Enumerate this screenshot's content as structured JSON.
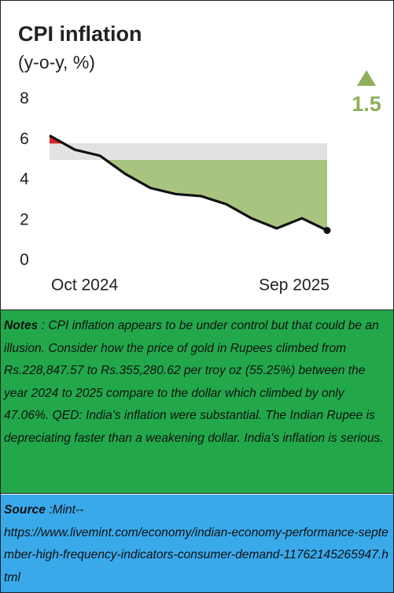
{
  "chart_data": {
    "type": "line",
    "title": "CPI inflation",
    "subtitle": "(y-o-y, %)",
    "categories": [
      "Oct 2024",
      null,
      null,
      null,
      null,
      null,
      null,
      null,
      null,
      null,
      null,
      "Sep 2025"
    ],
    "series": [
      {
        "color": "#111111",
        "values": [
          6.2,
          5.5,
          5.2,
          4.3,
          3.6,
          3.3,
          3.2,
          2.8,
          2.1,
          1.6,
          2.1,
          1.5
        ]
      }
    ],
    "reference_band": {
      "low": 5.0,
      "high": 5.8,
      "color": "#e2e2e2",
      "below_color": "#a9c47f",
      "above_color": "#d9262c"
    },
    "ylim": [
      0,
      8
    ],
    "yticks": [
      0,
      2,
      4,
      6,
      8
    ],
    "annotation": "1.5",
    "annotation_color": "#8fb05a"
  },
  "notes": {
    "label": "Notes",
    "text": ": CPI inflation appears to be under control but that could be an illusion. Consider how the price of gold in Rupees climbed from Rs.228,847.57 to Rs.355,280.62 per troy oz (55.25%) between the year 2024 to 2025 compare to the dollar which climbed by only 47.06%. QED: India's inflation were substantial. The Indian Rupee is depreciating faster than a weakening dollar. India's inflation is serious."
  },
  "source": {
    "label": "Source",
    "text": ":Mint--",
    "url": "https://www.livemint.com/economy/indian-economy-performance-september-high-frequency-indicators-consumer-demand-11762145265947.html"
  }
}
